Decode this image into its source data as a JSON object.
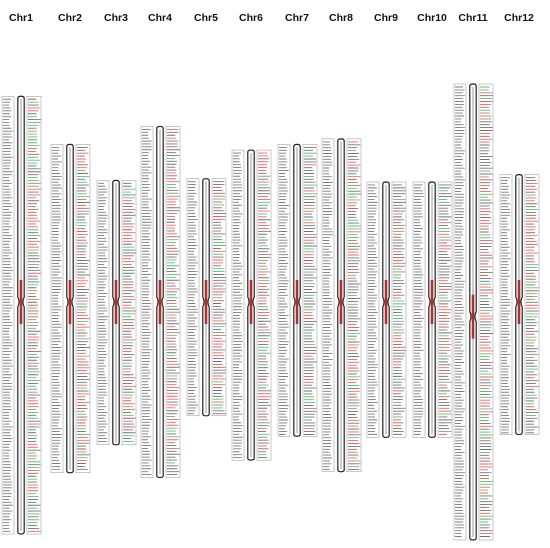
{
  "colors": {
    "background": "#ffffff",
    "chromosome_outline": "#222222",
    "chromosome_center": "#c00000",
    "label_box": "#777777",
    "gene_red": "#e02020",
    "gene_green": "#1a9a3a",
    "gene_black": "#333333"
  },
  "chromosomes": [
    {
      "name": "Chr1",
      "length_scale": 0.96,
      "centromere": 0.47
    },
    {
      "name": "Chr2",
      "length_scale": 0.72,
      "centromere": 0.48
    },
    {
      "name": "Chr3",
      "length_scale": 0.58,
      "centromere": 0.46
    },
    {
      "name": "Chr4",
      "length_scale": 0.77,
      "centromere": 0.5
    },
    {
      "name": "Chr5",
      "length_scale": 0.52,
      "centromere": 0.52
    },
    {
      "name": "Chr6",
      "length_scale": 0.68,
      "centromere": 0.49
    },
    {
      "name": "Chr7",
      "length_scale": 0.64,
      "centromere": 0.54
    },
    {
      "name": "Chr8",
      "length_scale": 0.73,
      "centromere": 0.49
    },
    {
      "name": "Chr9",
      "length_scale": 0.56,
      "centromere": 0.47
    },
    {
      "name": "Chr10",
      "length_scale": 0.56,
      "centromere": 0.47
    },
    {
      "name": "Chr11",
      "length_scale": 1.0,
      "centromere": 0.51
    },
    {
      "name": "Chr12",
      "length_scale": 0.57,
      "centromere": 0.49
    }
  ]
}
